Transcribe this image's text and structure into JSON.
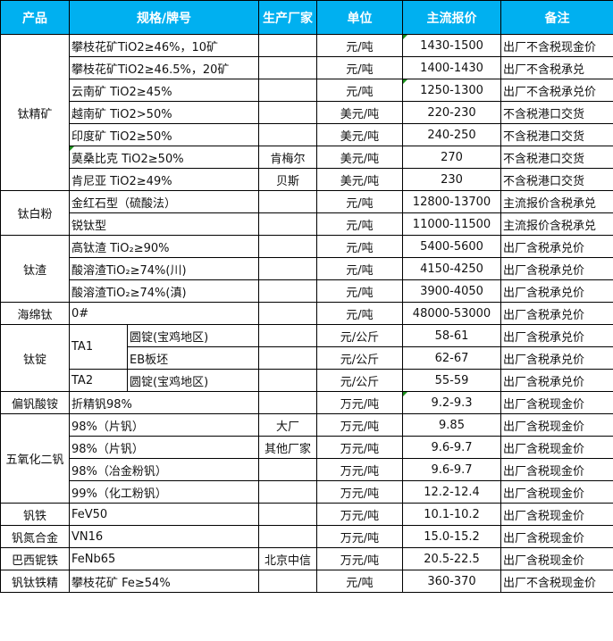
{
  "header": {
    "product": "产品",
    "spec": "规格/牌号",
    "maker": "生产厂家",
    "unit": "单位",
    "price": "主流报价",
    "note": "备注"
  },
  "accent_color": "#00b0f0",
  "groups": [
    {
      "product": "钛精矿",
      "rows": [
        {
          "spec": "攀枝花矿TiO2≥46%，10矿",
          "maker": "",
          "unit": "元/吨",
          "price": "1430-1500",
          "note": "出厂不含税现金价",
          "mark": true
        },
        {
          "spec": "攀枝花矿TiO2≥46.5%，20矿",
          "maker": "",
          "unit": "元/吨",
          "price": "1400-1430",
          "note": "出厂不含税承兑"
        },
        {
          "spec": "云南矿 TiO2≥45%",
          "maker": "",
          "unit": "元/吨",
          "price": "1250-1300",
          "note": "出厂不含税承兑价",
          "mark": true
        },
        {
          "spec": "越南矿 TiO2>50%",
          "maker": "",
          "unit": "美元/吨",
          "price": "220-230",
          "note": "不含税港口交货"
        },
        {
          "spec": "印度矿 TiO2≥50%",
          "maker": "",
          "unit": "美元/吨",
          "price": "240-250",
          "note": "不含税港口交货"
        },
        {
          "spec": "莫桑比克 TiO2≥50%",
          "maker": "肯梅尔",
          "unit": "美元/吨",
          "price": "270",
          "note": "不含税港口交货",
          "specmark": true
        },
        {
          "spec": "肯尼亚 TiO2≥49%",
          "maker": "贝斯",
          "unit": "美元/吨",
          "price": "230",
          "note": "不含税港口交货"
        }
      ]
    },
    {
      "product": "钛白粉",
      "rows": [
        {
          "spec": "金红石型（硫酸法）",
          "maker": "",
          "unit": "元/吨",
          "price": "12800-13700",
          "note": "主流报价含税承兑"
        },
        {
          "spec": "锐钛型",
          "maker": "",
          "unit": "元/吨",
          "price": "11000-11500",
          "note": "主流报价含税承兑"
        }
      ]
    },
    {
      "product": "钛渣",
      "rows": [
        {
          "spec": "高钛渣 TiO₂≥90%",
          "maker": "",
          "unit": "元/吨",
          "price": "5400-5600",
          "note": "出厂含税承兑价"
        },
        {
          "spec": "酸溶渣TiO₂≥74%(川)",
          "maker": "",
          "unit": "元/吨",
          "price": "4150-4250",
          "note": "出厂含税承兑价"
        },
        {
          "spec": "酸溶渣TiO₂≥74%(滇)",
          "maker": "",
          "unit": "元/吨",
          "price": "3900-4050",
          "note": "出厂含税承兑价"
        }
      ]
    },
    {
      "product": "海绵钛",
      "rows": [
        {
          "spec": "0#",
          "maker": "",
          "unit": "元/吨",
          "price": "48000-53000",
          "note": "出厂含税承兑价"
        }
      ]
    },
    {
      "product": "钛锭",
      "rows": [
        {
          "grade": "TA1",
          "graderows": 2,
          "spec": "圆锭(宝鸡地区)",
          "maker": "",
          "unit": "元/公斤",
          "price": "58-61",
          "note": "出厂含税承兑价"
        },
        {
          "spec": "EB板坯",
          "maker": "",
          "unit": "元/公斤",
          "price": "62-67",
          "note": "出厂含税承兑价",
          "sub": true
        },
        {
          "grade": "TA2",
          "graderows": 1,
          "spec": "圆锭(宝鸡地区)",
          "maker": "",
          "unit": "元/公斤",
          "price": "55-59",
          "note": "出厂含税承兑价"
        }
      ]
    },
    {
      "product": "偏钒酸铵",
      "rows": [
        {
          "spec": "折精钒98%",
          "maker": "",
          "unit": "万元/吨",
          "price": "9.2-9.3",
          "note": "出厂含税现金价",
          "mark": true
        }
      ]
    },
    {
      "product": "五氧化二钒",
      "rows": [
        {
          "spec": "98%（片钒）",
          "maker": "大厂",
          "unit": "万元/吨",
          "price": "9.85",
          "note": "出厂含税现金价"
        },
        {
          "spec": "98%（片钒）",
          "maker": "其他厂家",
          "unit": "万元/吨",
          "price": "9.6-9.7",
          "note": "出厂含税现金价"
        },
        {
          "spec": "98%（冶金粉钒）",
          "maker": "",
          "unit": "万元/吨",
          "price": "9.6-9.7",
          "note": "出厂含税现金价"
        },
        {
          "spec": "99%（化工粉钒）",
          "maker": "",
          "unit": "万元/吨",
          "price": "12.2-12.4",
          "note": "出厂含税现金价"
        }
      ]
    },
    {
      "product": "钒铁",
      "rows": [
        {
          "spec": "FeV50",
          "maker": "",
          "unit": "万元/吨",
          "price": "10.1-10.2",
          "note": "出厂含税现金价"
        }
      ]
    },
    {
      "product": "钒氮合金",
      "rows": [
        {
          "spec": "VN16",
          "maker": "",
          "unit": "万元/吨",
          "price": "15.0-15.2",
          "note": "出厂含税现金价"
        }
      ]
    },
    {
      "product": "巴西铌铁",
      "rows": [
        {
          "spec": "FeNb65",
          "maker": "北京中信",
          "unit": "万元/吨",
          "price": "20.5-22.5",
          "note": "出厂含税现金价"
        }
      ]
    },
    {
      "product": "钒钛铁精",
      "rows": [
        {
          "spec": "攀枝花矿 Fe≥54%",
          "maker": "",
          "unit": "元/吨",
          "price": "360-370",
          "note": "出厂不含税现金价"
        }
      ]
    }
  ]
}
